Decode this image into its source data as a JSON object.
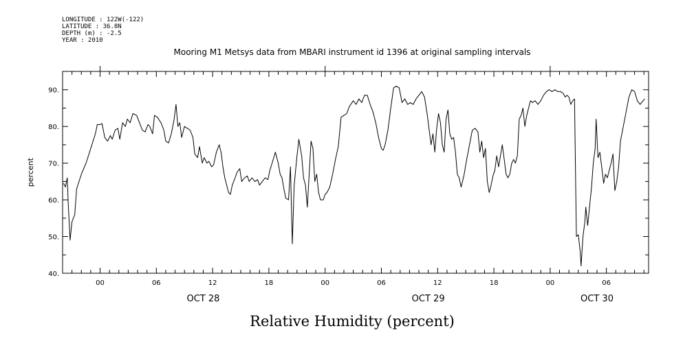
{
  "header": {
    "lines": [
      "LONGITUDE : 122W(-122)",
      "LATITUDE : 36.8N",
      "DEPTH (m) : -2.5",
      "YEAR : 2010"
    ]
  },
  "chart_data": {
    "type": "line",
    "title": "Mooring M1 Metsys data from MBARI instrument id 1396 at original sampling intervals",
    "xlabel": "Relative Humidity (percent)",
    "ylabel": "percent",
    "ylim": [
      40,
      95
    ],
    "xlim_hours": [
      -4,
      58.5
    ],
    "grid": false,
    "legend": "none",
    "y_ticks": [
      40,
      50,
      60,
      70,
      80,
      90
    ],
    "y_tick_labels": [
      "40.",
      "50.",
      "60.",
      "70.",
      "80.",
      "90."
    ],
    "x_ticks": [
      {
        "h": 0,
        "label": "00"
      },
      {
        "h": 6,
        "label": "06"
      },
      {
        "h": 12,
        "label": "12"
      },
      {
        "h": 18,
        "label": "18"
      },
      {
        "h": 24,
        "label": "00"
      },
      {
        "h": 30,
        "label": "06"
      },
      {
        "h": 36,
        "label": "12"
      },
      {
        "h": 42,
        "label": "18"
      },
      {
        "h": 48,
        "label": "00"
      },
      {
        "h": 54,
        "label": "06"
      }
    ],
    "date_labels": [
      {
        "h": 11,
        "label": "OCT 28"
      },
      {
        "h": 35,
        "label": "OCT 29"
      },
      {
        "h": 53,
        "label": "OCT 30"
      }
    ],
    "series": [
      {
        "line_color": "#000000",
        "points": [
          [
            -3.9,
            64.5
          ],
          [
            -3.7,
            63.5
          ],
          [
            -3.5,
            66
          ],
          [
            -3.4,
            59
          ],
          [
            -3.2,
            49
          ],
          [
            -3.0,
            54
          ],
          [
            -2.7,
            56
          ],
          [
            -2.5,
            63
          ],
          [
            -2.0,
            67
          ],
          [
            -1.5,
            70
          ],
          [
            -1.0,
            74
          ],
          [
            -0.5,
            78
          ],
          [
            -0.3,
            80.5
          ],
          [
            0.0,
            80.5
          ],
          [
            0.2,
            80.8
          ],
          [
            0.5,
            77
          ],
          [
            0.8,
            76
          ],
          [
            1.1,
            77.5
          ],
          [
            1.3,
            76.5
          ],
          [
            1.6,
            79
          ],
          [
            1.9,
            79.5
          ],
          [
            2.1,
            76.5
          ],
          [
            2.4,
            81
          ],
          [
            2.7,
            80
          ],
          [
            2.9,
            82
          ],
          [
            3.2,
            81
          ],
          [
            3.5,
            83.5
          ],
          [
            3.9,
            83
          ],
          [
            4.2,
            81
          ],
          [
            4.5,
            79
          ],
          [
            4.8,
            78.5
          ],
          [
            5.1,
            80.5
          ],
          [
            5.3,
            80
          ],
          [
            5.6,
            78
          ],
          [
            5.8,
            83
          ],
          [
            6.1,
            82.5
          ],
          [
            6.5,
            81
          ],
          [
            6.8,
            79
          ],
          [
            7.0,
            76
          ],
          [
            7.3,
            75.5
          ],
          [
            7.6,
            78
          ],
          [
            7.9,
            82
          ],
          [
            8.1,
            86
          ],
          [
            8.3,
            80
          ],
          [
            8.5,
            81
          ],
          [
            8.7,
            77
          ],
          [
            9.0,
            80
          ],
          [
            9.3,
            79.5
          ],
          [
            9.6,
            79
          ],
          [
            9.9,
            77
          ],
          [
            10.1,
            72.5
          ],
          [
            10.4,
            71.5
          ],
          [
            10.6,
            74.5
          ],
          [
            10.9,
            70
          ],
          [
            11.1,
            71.5
          ],
          [
            11.4,
            70
          ],
          [
            11.6,
            70.5
          ],
          [
            11.9,
            69
          ],
          [
            12.1,
            69.5
          ],
          [
            12.4,
            73
          ],
          [
            12.7,
            75
          ],
          [
            12.9,
            73
          ],
          [
            13.1,
            69
          ],
          [
            13.3,
            66
          ],
          [
            13.5,
            64
          ],
          [
            13.7,
            62
          ],
          [
            13.9,
            61.5
          ],
          [
            14.1,
            64
          ],
          [
            14.4,
            66
          ],
          [
            14.6,
            67.5
          ],
          [
            14.9,
            68.5
          ],
          [
            15.1,
            65
          ],
          [
            15.4,
            66
          ],
          [
            15.7,
            66.5
          ],
          [
            15.9,
            65
          ],
          [
            16.2,
            66
          ],
          [
            16.5,
            65
          ],
          [
            16.8,
            65.5
          ],
          [
            17.0,
            64
          ],
          [
            17.3,
            65
          ],
          [
            17.6,
            66
          ],
          [
            17.9,
            65.5
          ],
          [
            18.1,
            68
          ],
          [
            18.4,
            70.5
          ],
          [
            18.7,
            73
          ],
          [
            19.0,
            70
          ],
          [
            19.2,
            67
          ],
          [
            19.4,
            66
          ],
          [
            19.6,
            63
          ],
          [
            19.8,
            60.5
          ],
          [
            20.1,
            60
          ],
          [
            20.3,
            69
          ],
          [
            20.5,
            48
          ],
          [
            20.7,
            64
          ],
          [
            21.0,
            72
          ],
          [
            21.2,
            76.5
          ],
          [
            21.5,
            72
          ],
          [
            21.7,
            66
          ],
          [
            21.9,
            64
          ],
          [
            22.1,
            58
          ],
          [
            22.3,
            67
          ],
          [
            22.5,
            76
          ],
          [
            22.7,
            74
          ],
          [
            22.9,
            65
          ],
          [
            23.1,
            67
          ],
          [
            23.3,
            62
          ],
          [
            23.5,
            60
          ],
          [
            23.8,
            60
          ],
          [
            24.0,
            61.5
          ],
          [
            24.2,
            62
          ],
          [
            24.5,
            63.5
          ],
          [
            24.8,
            67
          ],
          [
            25.1,
            71
          ],
          [
            25.4,
            74.5
          ],
          [
            25.7,
            82.5
          ],
          [
            26.0,
            83
          ],
          [
            26.3,
            83.5
          ],
          [
            26.6,
            85.5
          ],
          [
            27.0,
            87
          ],
          [
            27.3,
            86
          ],
          [
            27.6,
            87.5
          ],
          [
            27.9,
            86.5
          ],
          [
            28.2,
            88.5
          ],
          [
            28.5,
            88.5
          ],
          [
            28.8,
            86
          ],
          [
            29.1,
            84
          ],
          [
            29.4,
            81
          ],
          [
            29.7,
            77
          ],
          [
            30.0,
            74
          ],
          [
            30.2,
            73.5
          ],
          [
            30.4,
            75
          ],
          [
            30.7,
            79
          ],
          [
            31.0,
            85
          ],
          [
            31.3,
            90.5
          ],
          [
            31.6,
            91
          ],
          [
            31.9,
            90.5
          ],
          [
            32.2,
            86.5
          ],
          [
            32.5,
            87.5
          ],
          [
            32.8,
            86
          ],
          [
            33.1,
            86.5
          ],
          [
            33.4,
            86
          ],
          [
            33.7,
            87.5
          ],
          [
            34.0,
            88.5
          ],
          [
            34.3,
            89.5
          ],
          [
            34.6,
            88
          ],
          [
            34.9,
            83
          ],
          [
            35.1,
            79
          ],
          [
            35.3,
            75
          ],
          [
            35.5,
            78
          ],
          [
            35.7,
            73
          ],
          [
            35.9,
            79.5
          ],
          [
            36.1,
            83.5
          ],
          [
            36.3,
            81
          ],
          [
            36.5,
            75
          ],
          [
            36.7,
            73
          ],
          [
            36.9,
            82
          ],
          [
            37.1,
            84.5
          ],
          [
            37.3,
            78
          ],
          [
            37.5,
            76.5
          ],
          [
            37.7,
            77
          ],
          [
            37.9,
            73
          ],
          [
            38.1,
            67
          ],
          [
            38.3,
            66
          ],
          [
            38.5,
            63.5
          ],
          [
            38.8,
            66.5
          ],
          [
            39.1,
            71
          ],
          [
            39.4,
            75
          ],
          [
            39.7,
            79
          ],
          [
            40.0,
            79.5
          ],
          [
            40.3,
            78.5
          ],
          [
            40.5,
            73
          ],
          [
            40.7,
            76
          ],
          [
            40.9,
            71.5
          ],
          [
            41.1,
            74
          ],
          [
            41.3,
            65
          ],
          [
            41.5,
            62
          ],
          [
            41.7,
            64
          ],
          [
            41.9,
            66.5
          ],
          [
            42.1,
            68
          ],
          [
            42.3,
            72
          ],
          [
            42.5,
            69
          ],
          [
            42.7,
            72
          ],
          [
            42.9,
            75
          ],
          [
            43.1,
            71
          ],
          [
            43.3,
            67
          ],
          [
            43.5,
            66
          ],
          [
            43.7,
            67
          ],
          [
            43.9,
            70
          ],
          [
            44.1,
            71
          ],
          [
            44.3,
            70
          ],
          [
            44.5,
            72
          ],
          [
            44.7,
            82
          ],
          [
            44.9,
            83
          ],
          [
            45.1,
            85
          ],
          [
            45.3,
            80
          ],
          [
            45.5,
            83
          ],
          [
            45.7,
            85
          ],
          [
            45.9,
            87
          ],
          [
            46.1,
            86.5
          ],
          [
            46.4,
            87
          ],
          [
            46.7,
            86
          ],
          [
            47.0,
            87
          ],
          [
            47.3,
            88.5
          ],
          [
            47.6,
            89.5
          ],
          [
            47.9,
            90
          ],
          [
            48.2,
            89.5
          ],
          [
            48.5,
            90
          ],
          [
            48.8,
            89.5
          ],
          [
            49.1,
            89.5
          ],
          [
            49.4,
            89
          ],
          [
            49.6,
            88
          ],
          [
            49.8,
            88.5
          ],
          [
            50.0,
            88
          ],
          [
            50.2,
            86
          ],
          [
            50.4,
            87
          ],
          [
            50.6,
            87.5
          ],
          [
            50.8,
            50
          ],
          [
            51.0,
            50.5
          ],
          [
            51.2,
            46
          ],
          [
            51.3,
            42
          ],
          [
            51.5,
            50
          ],
          [
            51.7,
            54
          ],
          [
            51.8,
            58
          ],
          [
            52.0,
            53
          ],
          [
            52.2,
            58
          ],
          [
            52.4,
            63
          ],
          [
            52.6,
            70
          ],
          [
            52.8,
            74
          ],
          [
            52.9,
            82
          ],
          [
            53.1,
            71.5
          ],
          [
            53.3,
            73
          ],
          [
            53.5,
            69
          ],
          [
            53.7,
            64.5
          ],
          [
            53.9,
            67
          ],
          [
            54.1,
            66
          ],
          [
            54.3,
            68
          ],
          [
            54.5,
            70
          ],
          [
            54.7,
            72.5
          ],
          [
            54.9,
            62.5
          ],
          [
            55.1,
            65
          ],
          [
            55.3,
            69
          ],
          [
            55.5,
            76
          ],
          [
            55.8,
            80
          ],
          [
            56.1,
            84
          ],
          [
            56.4,
            88
          ],
          [
            56.7,
            90
          ],
          [
            57.0,
            89.5
          ],
          [
            57.3,
            87
          ],
          [
            57.6,
            86
          ],
          [
            57.9,
            87
          ],
          [
            58.1,
            87.5
          ]
        ]
      }
    ]
  }
}
